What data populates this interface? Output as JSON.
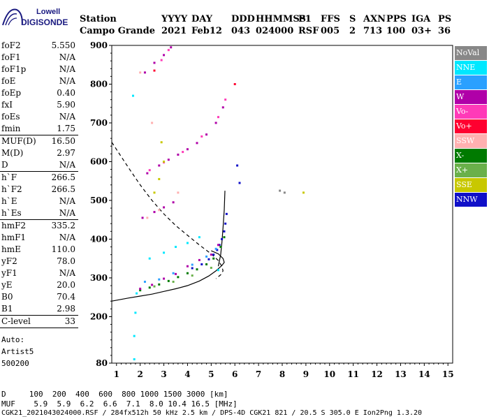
{
  "logo": {
    "line1": "Lowell",
    "line2": "DIGISONDE"
  },
  "header": {
    "row1": [
      "Station",
      "YYYY",
      "DAY",
      "DDD",
      "HHMMSS",
      "P1",
      "FFS",
      "S",
      "AXN",
      "PPS",
      "IGA",
      "PS"
    ],
    "row2": [
      "Campo Grande",
      "2021",
      "Feb12",
      "043",
      "024000",
      "RSF",
      "005",
      "2",
      "713",
      "100",
      "03+",
      "36"
    ]
  },
  "params": [
    {
      "label": "foF2",
      "value": "5.550"
    },
    {
      "label": "foF1",
      "value": "N/A"
    },
    {
      "label": "foF1p",
      "value": "N/A"
    },
    {
      "label": "foE",
      "value": "N/A"
    },
    {
      "label": "foEp",
      "value": "0.40"
    },
    {
      "label": "fxI",
      "value": "5.90"
    },
    {
      "label": "foEs",
      "value": "N/A"
    },
    {
      "label": "fmin",
      "value": "1.75"
    },
    {
      "label": "MUF(D)",
      "value": "16.50"
    },
    {
      "label": "M(D)",
      "value": "2.97"
    },
    {
      "label": "D",
      "value": "N/A"
    },
    {
      "label": "h`F",
      "value": "266.5"
    },
    {
      "label": "h`F2",
      "value": "266.5"
    },
    {
      "label": "h`E",
      "value": "N/A"
    },
    {
      "label": "h`Es",
      "value": "N/A"
    },
    {
      "label": "hmF2",
      "value": "335.2"
    },
    {
      "label": "hmF1",
      "value": "N/A"
    },
    {
      "label": "hmE",
      "value": "110.0"
    },
    {
      "label": "yF2",
      "value": "78.0"
    },
    {
      "label": "yF1",
      "value": "N/A"
    },
    {
      "label": "yE",
      "value": "20.0"
    },
    {
      "label": "B0",
      "value": "70.4"
    },
    {
      "label": "B1",
      "value": "2.98"
    },
    {
      "label": "C-level",
      "value": "33"
    }
  ],
  "auto": {
    "line1": "Auto:",
    "line2": "Artist5",
    "line3": "500200"
  },
  "legend": [
    {
      "label": "NoVal",
      "color": "#888888"
    },
    {
      "label": "NNE",
      "color": "#00e8ff"
    },
    {
      "label": "E",
      "color": "#2aa0ff"
    },
    {
      "label": "W",
      "color": "#b000a8"
    },
    {
      "label": "Vo-",
      "color": "#ff3ab8"
    },
    {
      "label": "Vo+",
      "color": "#ff0030"
    },
    {
      "label": "SSW",
      "color": "#ffb0b0"
    },
    {
      "label": "X-",
      "color": "#007a00"
    },
    {
      "label": "X+",
      "color": "#6ab04a"
    },
    {
      "label": "SSE",
      "color": "#c8c800"
    },
    {
      "label": "NNW",
      "color": "#1010c8"
    }
  ],
  "mufTable": {
    "row1": "D     100  200  400  600  800 1000 1500 3000 [km]",
    "row2": "MUF    5.9  5.9  6.2  6.6  7.1  8.0 10.4 16.5 [MHz]"
  },
  "footer": "CGK21_2021043024000.RSF / 284fx512h 50 kHz 2.5 km / DPS-4D CGK21 821 / 20.5 S 305.0 E Ion2Png 1.3.20",
  "chart_data": {
    "type": "scatter",
    "title": "",
    "xlabel": "",
    "ylabel": "",
    "xlim": [
      0.8,
      15.2
    ],
    "ylim": [
      80,
      900
    ],
    "xticks": [
      1,
      2,
      3,
      4,
      5,
      6,
      7,
      8,
      9,
      10,
      11,
      12,
      13,
      14,
      15
    ],
    "yticks": [
      80,
      200,
      300,
      400,
      500,
      600,
      700,
      800,
      900
    ],
    "grid": false,
    "legend_position": "right",
    "series": [
      {
        "name": "NNW",
        "color": "#1010c8",
        "points": [
          [
            4.2,
            325
          ],
          [
            4.6,
            335
          ],
          [
            4.9,
            348
          ],
          [
            5.1,
            360
          ],
          [
            5.25,
            372
          ],
          [
            5.35,
            385
          ],
          [
            5.45,
            400
          ],
          [
            5.55,
            420
          ],
          [
            5.6,
            440
          ],
          [
            5.65,
            465
          ],
          [
            6.1,
            590
          ],
          [
            6.2,
            545
          ]
        ]
      },
      {
        "name": "X-",
        "color": "#007a00",
        "points": [
          [
            2.0,
            268
          ],
          [
            2.4,
            275
          ],
          [
            2.8,
            283
          ],
          [
            3.2,
            292
          ],
          [
            3.6,
            302
          ],
          [
            4.0,
            312
          ],
          [
            4.4,
            322
          ],
          [
            4.8,
            335
          ],
          [
            5.1,
            350
          ],
          [
            5.4,
            380
          ],
          [
            5.55,
            405
          ]
        ]
      },
      {
        "name": "X+",
        "color": "#6ab04a",
        "points": [
          [
            2.6,
            278
          ],
          [
            3.4,
            290
          ],
          [
            4.2,
            306
          ],
          [
            5.0,
            326
          ]
        ]
      },
      {
        "name": "W",
        "color": "#b000a8",
        "points": [
          [
            2.0,
            272
          ],
          [
            2.5,
            282
          ],
          [
            3.0,
            298
          ],
          [
            3.5,
            310
          ],
          [
            4.0,
            330
          ],
          [
            4.5,
            346
          ],
          [
            5.0,
            360
          ],
          [
            5.3,
            385
          ],
          [
            2.1,
            455
          ],
          [
            2.6,
            470
          ],
          [
            3.0,
            482
          ],
          [
            3.4,
            495
          ],
          [
            2.3,
            570
          ],
          [
            2.8,
            590
          ],
          [
            3.2,
            605
          ],
          [
            3.6,
            618
          ],
          [
            4.0,
            632
          ],
          [
            4.4,
            648
          ],
          [
            4.8,
            670
          ],
          [
            5.2,
            700
          ],
          [
            5.5,
            740
          ],
          [
            2.2,
            830
          ],
          [
            2.6,
            855
          ],
          [
            3.0,
            875
          ],
          [
            3.3,
            895
          ]
        ]
      },
      {
        "name": "Vo-",
        "color": "#ff3ab8",
        "points": [
          [
            2.4,
            578
          ],
          [
            3.0,
            598
          ],
          [
            3.8,
            625
          ],
          [
            4.6,
            665
          ],
          [
            5.3,
            715
          ],
          [
            5.6,
            760
          ],
          [
            2.9,
            862
          ],
          [
            3.2,
            888
          ]
        ]
      },
      {
        "name": "E",
        "color": "#2aa0ff",
        "points": [
          [
            2.2,
            290
          ],
          [
            2.8,
            296
          ],
          [
            3.4,
            312
          ],
          [
            4.2,
            334
          ],
          [
            4.8,
            355
          ],
          [
            5.2,
            375
          ]
        ]
      },
      {
        "name": "NNE",
        "color": "#00e8ff",
        "points": [
          [
            1.75,
            90
          ],
          [
            1.75,
            150
          ],
          [
            1.8,
            210
          ],
          [
            1.85,
            260
          ],
          [
            2.4,
            350
          ],
          [
            3.0,
            365
          ],
          [
            3.5,
            380
          ],
          [
            4.0,
            390
          ],
          [
            4.5,
            405
          ],
          [
            1.7,
            770
          ],
          [
            5.3,
            320
          ]
        ]
      },
      {
        "name": "SSE",
        "color": "#c8c800",
        "points": [
          [
            2.6,
            520
          ],
          [
            2.8,
            555
          ],
          [
            3.0,
            600
          ],
          [
            2.9,
            650
          ],
          [
            8.9,
            520
          ]
        ]
      },
      {
        "name": "SSW",
        "color": "#ffb0b0",
        "points": [
          [
            2.3,
            455
          ],
          [
            2.8,
            475
          ],
          [
            3.6,
            520
          ],
          [
            2.0,
            830
          ],
          [
            2.5,
            700
          ]
        ]
      },
      {
        "name": "Vo+",
        "color": "#ff0030",
        "points": [
          [
            6.0,
            800
          ],
          [
            2.6,
            835
          ]
        ]
      },
      {
        "name": "NoVal",
        "color": "#888888",
        "points": [
          [
            7.9,
            525
          ],
          [
            8.1,
            520
          ]
        ]
      }
    ],
    "curves": [
      {
        "style": "dashed",
        "points": [
          [
            0.8,
            650
          ],
          [
            1.5,
            585
          ],
          [
            2.0,
            540
          ],
          [
            2.5,
            500
          ],
          [
            3.0,
            465
          ],
          [
            3.5,
            435
          ],
          [
            4.0,
            410
          ],
          [
            4.5,
            385
          ],
          [
            5.0,
            362
          ],
          [
            5.3,
            345
          ],
          [
            5.45,
            330
          ],
          [
            5.5,
            318
          ],
          [
            5.4,
            308
          ],
          [
            5.2,
            298
          ]
        ]
      },
      {
        "style": "solid",
        "points": [
          [
            0.8,
            240
          ],
          [
            1.5,
            248
          ],
          [
            2.0,
            253
          ],
          [
            2.5,
            258
          ],
          [
            3.0,
            265
          ],
          [
            3.5,
            272
          ],
          [
            4.0,
            280
          ],
          [
            4.5,
            292
          ],
          [
            4.9,
            305
          ],
          [
            5.2,
            318
          ],
          [
            5.45,
            332
          ],
          [
            5.55,
            340
          ],
          [
            5.5,
            350
          ],
          [
            5.3,
            362
          ],
          [
            5.0,
            370
          ]
        ]
      },
      {
        "style": "solid",
        "points": [
          [
            5.3,
            330
          ],
          [
            5.4,
            360
          ],
          [
            5.45,
            390
          ],
          [
            5.5,
            430
          ],
          [
            5.55,
            475
          ],
          [
            5.58,
            525
          ]
        ]
      }
    ]
  }
}
